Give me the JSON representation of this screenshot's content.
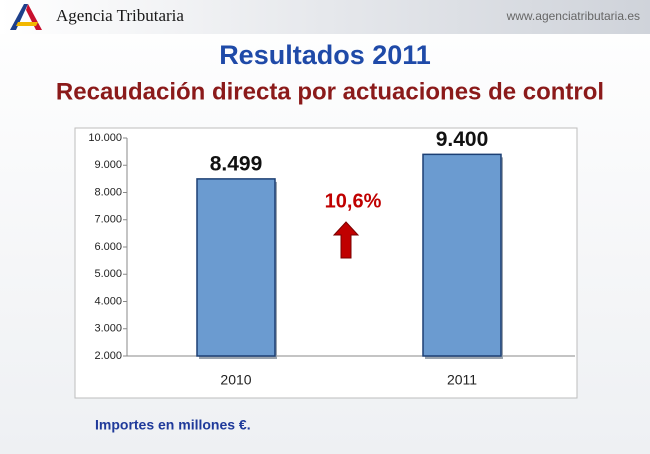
{
  "header": {
    "brand": "Agencia Tributaria",
    "url": "www.agenciatributaria.es"
  },
  "chart_data": {
    "type": "bar",
    "title": "Resultados 2011",
    "subtitle": "Recaudación directa por actuaciones de control",
    "categories": [
      "2010",
      "2011"
    ],
    "values": [
      8499,
      9400
    ],
    "value_labels": [
      "8.499",
      "9.400"
    ],
    "color": "#6b9bd0",
    "ylim": [
      2000,
      10000
    ],
    "yticks": [
      {
        "value": 2000,
        "label": "2.000"
      },
      {
        "value": 3000,
        "label": "3.000"
      },
      {
        "value": 4000,
        "label": "4.000"
      },
      {
        "value": 5000,
        "label": "5.000"
      },
      {
        "value": 6000,
        "label": "6.000"
      },
      {
        "value": 7000,
        "label": "7.000"
      },
      {
        "value": 8000,
        "label": "8.000"
      },
      {
        "value": 9000,
        "label": "9.000"
      },
      {
        "value": 10000,
        "label": "10.000"
      }
    ],
    "grid": false,
    "annotation": "10,6%",
    "note": "Importes en millones €."
  }
}
